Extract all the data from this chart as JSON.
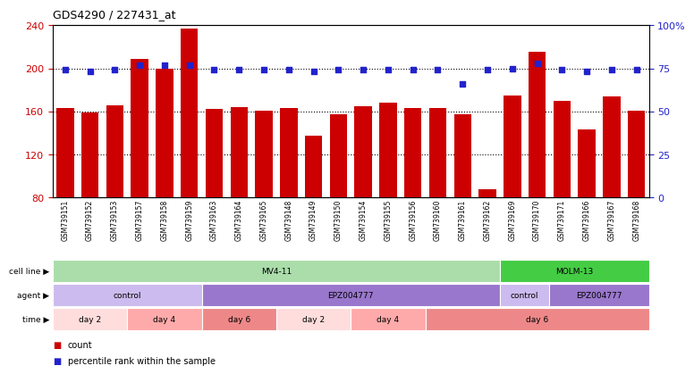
{
  "title": "GDS4290 / 227431_at",
  "samples": [
    "GSM739151",
    "GSM739152",
    "GSM739153",
    "GSM739157",
    "GSM739158",
    "GSM739159",
    "GSM739163",
    "GSM739164",
    "GSM739165",
    "GSM739148",
    "GSM739149",
    "GSM739150",
    "GSM739154",
    "GSM739155",
    "GSM739156",
    "GSM739160",
    "GSM739161",
    "GSM739162",
    "GSM739169",
    "GSM739170",
    "GSM739171",
    "GSM739166",
    "GSM739167",
    "GSM739168"
  ],
  "counts": [
    163,
    159,
    166,
    209,
    200,
    237,
    162,
    164,
    161,
    163,
    137,
    157,
    165,
    168,
    163,
    163,
    157,
    88,
    175,
    215,
    170,
    143,
    174,
    161
  ],
  "percentiles": [
    74,
    73,
    74,
    77,
    77,
    77,
    74,
    74,
    74,
    74,
    73,
    74,
    74,
    74,
    74,
    74,
    66,
    74,
    75,
    78,
    74,
    73,
    74,
    74
  ],
  "bar_color": "#cc0000",
  "dot_color": "#2222cc",
  "ylim_left": [
    80,
    240
  ],
  "ylim_right": [
    0,
    100
  ],
  "yticks_left": [
    80,
    120,
    160,
    200,
    240
  ],
  "yticks_right": [
    0,
    25,
    50,
    75,
    100
  ],
  "ytick_labels_right": [
    "0",
    "25",
    "50",
    "75",
    "100%"
  ],
  "cell_line_groups": [
    {
      "label": "MV4-11",
      "start": 0,
      "end": 18,
      "color": "#aaddaa"
    },
    {
      "label": "MOLM-13",
      "start": 18,
      "end": 24,
      "color": "#44cc44"
    }
  ],
  "agent_groups": [
    {
      "label": "control",
      "start": 0,
      "end": 6,
      "color": "#ccbbee"
    },
    {
      "label": "EPZ004777",
      "start": 6,
      "end": 18,
      "color": "#9977cc"
    },
    {
      "label": "control",
      "start": 18,
      "end": 20,
      "color": "#ccbbee"
    },
    {
      "label": "EPZ004777",
      "start": 20,
      "end": 24,
      "color": "#9977cc"
    }
  ],
  "time_groups": [
    {
      "label": "day 2",
      "start": 0,
      "end": 3,
      "color": "#ffdddd"
    },
    {
      "label": "day 4",
      "start": 3,
      "end": 6,
      "color": "#ffaaaa"
    },
    {
      "label": "day 6",
      "start": 6,
      "end": 9,
      "color": "#ee8888"
    },
    {
      "label": "day 2",
      "start": 9,
      "end": 12,
      "color": "#ffdddd"
    },
    {
      "label": "day 4",
      "start": 12,
      "end": 15,
      "color": "#ffaaaa"
    },
    {
      "label": "day 6",
      "start": 15,
      "end": 24,
      "color": "#ee8888"
    }
  ],
  "background_color": "#ffffff"
}
